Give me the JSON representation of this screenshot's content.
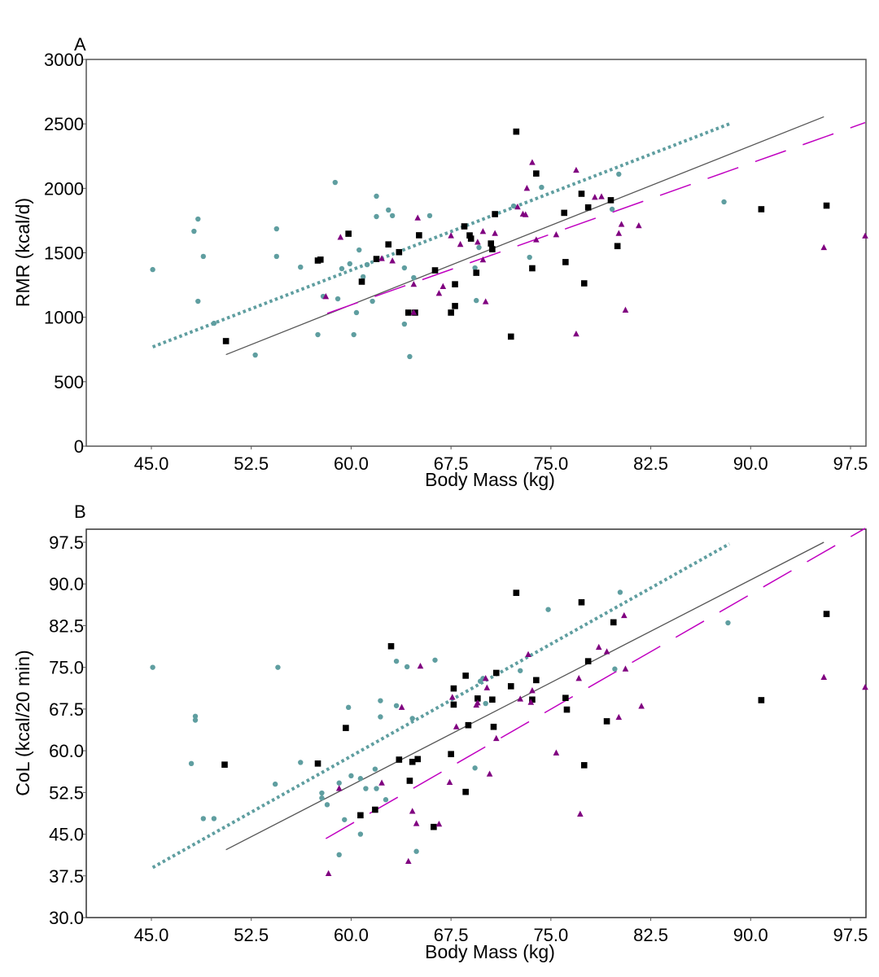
{
  "colors": {
    "female": "#5f9ea0",
    "male": "#000000",
    "combined_points": "#800080",
    "dashed_line": "#c000c0",
    "axis": "#555555"
  },
  "chart_data": [
    {
      "type": "scatter",
      "panel_label": "A",
      "xlabel": "Body Mass (kg)",
      "ylabel": "RMR (kcal/d)",
      "xlim": [
        38.8,
        99.6
      ],
      "ylim": [
        0,
        3000
      ],
      "x_ticks": [
        "45.0",
        "52.5",
        "60.0",
        "67.5",
        "75.0",
        "82.5",
        "90.0",
        "97.5"
      ],
      "x_tick_values": [
        45,
        52.5,
        60,
        67.5,
        75,
        82.5,
        90,
        97.5
      ],
      "y_ticks": [
        "0",
        "500",
        "1000",
        "1500",
        "2000",
        "2500",
        "3000"
      ],
      "y_tick_values": [
        0,
        500,
        1000,
        1500,
        2000,
        2500,
        3000
      ],
      "grid": false,
      "series": [
        {
          "name": "circles",
          "marker": "circle",
          "color": "#5f9ea0",
          "points": [
            [
              45.1,
              1370
            ],
            [
              48.2,
              1667
            ],
            [
              48.5,
              1762
            ],
            [
              48.5,
              1124
            ],
            [
              48.9,
              1472
            ],
            [
              49.7,
              953
            ],
            [
              52.8,
              707
            ],
            [
              54.4,
              1686
            ],
            [
              54.4,
              1472
            ],
            [
              56.2,
              1389
            ],
            [
              57.5,
              865
            ],
            [
              57.9,
              1162
            ],
            [
              58.8,
              2046
            ],
            [
              59.0,
              1143
            ],
            [
              59.3,
              1377
            ],
            [
              59.9,
              1415
            ],
            [
              60.2,
              865
            ],
            [
              60.6,
              1522
            ],
            [
              60.4,
              1036
            ],
            [
              60.9,
              1314
            ],
            [
              61.2,
              1408
            ],
            [
              61.6,
              1124
            ],
            [
              61.9,
              1939
            ],
            [
              61.9,
              1781
            ],
            [
              62.8,
              1832
            ],
            [
              63.1,
              1788
            ],
            [
              64.0,
              1383
            ],
            [
              64.0,
              947
            ],
            [
              64.4,
              695
            ],
            [
              64.7,
              1307
            ],
            [
              65.9,
              1788
            ],
            [
              69.3,
              1383
            ],
            [
              69.6,
              1541
            ],
            [
              69.4,
              1130
            ],
            [
              72.2,
              1863
            ],
            [
              74.3,
              2008
            ],
            [
              73.4,
              1465
            ],
            [
              79.6,
              1838
            ],
            [
              80.1,
              2110
            ],
            [
              88.0,
              1895
            ]
          ]
        },
        {
          "name": "squares",
          "marker": "square",
          "color": "#000000",
          "points": [
            [
              50.6,
              815
            ],
            [
              57.5,
              1440
            ],
            [
              57.7,
              1447
            ],
            [
              59.8,
              1648
            ],
            [
              60.8,
              1276
            ],
            [
              62.8,
              1565
            ],
            [
              61.9,
              1452
            ],
            [
              63.6,
              1505
            ],
            [
              64.3,
              1036
            ],
            [
              64.8,
              1036
            ],
            [
              65.1,
              1636
            ],
            [
              66.3,
              1364
            ],
            [
              67.5,
              1036
            ],
            [
              67.8,
              1256
            ],
            [
              67.8,
              1087
            ],
            [
              68.5,
              1705
            ],
            [
              68.9,
              1635
            ],
            [
              69.0,
              1610
            ],
            [
              69.4,
              1345
            ],
            [
              70.5,
              1572
            ],
            [
              70.6,
              1528
            ],
            [
              70.8,
              1800
            ],
            [
              72.0,
              850
            ],
            [
              72.4,
              2440
            ],
            [
              73.6,
              1380
            ],
            [
              73.9,
              2115
            ],
            [
              76.0,
              1810
            ],
            [
              76.1,
              1428
            ],
            [
              77.3,
              1958
            ],
            [
              77.5,
              1263
            ],
            [
              77.8,
              1852
            ],
            [
              79.5,
              1908
            ],
            [
              80.0,
              1552
            ],
            [
              90.8,
              1838
            ],
            [
              95.7,
              1866
            ]
          ]
        },
        {
          "name": "triangles",
          "marker": "triangle",
          "color": "#800080",
          "points": [
            [
              58.1,
              1160
            ],
            [
              59.2,
              1620
            ],
            [
              62.3,
              1455
            ],
            [
              63.1,
              1437
            ],
            [
              64.7,
              1037
            ],
            [
              64.7,
              1255
            ],
            [
              65.0,
              1770
            ],
            [
              66.6,
              1185
            ],
            [
              66.9,
              1238
            ],
            [
              67.5,
              1632
            ],
            [
              68.2,
              1565
            ],
            [
              69.5,
              1582
            ],
            [
              69.9,
              1665
            ],
            [
              69.9,
              1445
            ],
            [
              70.8,
              1650
            ],
            [
              70.1,
              1120
            ],
            [
              72.5,
              1855
            ],
            [
              72.9,
              1800
            ],
            [
              73.1,
              1795
            ],
            [
              73.2,
              2000
            ],
            [
              73.6,
              2200
            ],
            [
              73.9,
              1600
            ],
            [
              75.4,
              1640
            ],
            [
              76.9,
              2140
            ],
            [
              76.9,
              870
            ],
            [
              78.3,
              1930
            ],
            [
              78.8,
              1935
            ],
            [
              80.1,
              1650
            ],
            [
              80.3,
              1720
            ],
            [
              80.6,
              1055
            ],
            [
              81.6,
              1710
            ],
            [
              95.5,
              1540
            ],
            [
              98.6,
              1630
            ]
          ]
        }
      ],
      "fit_lines": [
        {
          "name": "dotted",
          "style": "dotted",
          "color": "#5f9ea0",
          "x": [
            45.1,
            88.4
          ],
          "y": [
            770,
            2500
          ]
        },
        {
          "name": "solid",
          "style": "solid",
          "color": "#555555",
          "x": [
            50.6,
            95.5
          ],
          "y": [
            710,
            2555
          ]
        },
        {
          "name": "dashed",
          "style": "dashed",
          "color": "#c000c0",
          "x": [
            58.2,
            98.6
          ],
          "y": [
            1030,
            2510
          ]
        }
      ]
    },
    {
      "type": "scatter",
      "panel_label": "B",
      "xlabel": "Body Mass (kg)",
      "ylabel": "CoL (kcal/20 min)",
      "xlim": [
        38.8,
        99.6
      ],
      "ylim": [
        30,
        99.8
      ],
      "x_ticks": [
        "45.0",
        "52.5",
        "60.0",
        "67.5",
        "75.0",
        "82.5",
        "90.0",
        "97.5"
      ],
      "x_tick_values": [
        45,
        52.5,
        60,
        67.5,
        75,
        82.5,
        90,
        97.5
      ],
      "y_ticks": [
        "30.0",
        "37.5",
        "45.0",
        "52.5",
        "60.0",
        "67.5",
        "75.0",
        "82.5",
        "90.0",
        "97.5"
      ],
      "y_tick_values": [
        30,
        37.5,
        45,
        52.5,
        60,
        67.5,
        75,
        82.5,
        90,
        97.5
      ],
      "grid": false,
      "series": [
        {
          "name": "circles",
          "marker": "circle",
          "color": "#5f9ea0",
          "points": [
            [
              45.1,
              75.0
            ],
            [
              48.0,
              57.7
            ],
            [
              48.3,
              66.2
            ],
            [
              48.3,
              65.5
            ],
            [
              48.9,
              47.8
            ],
            [
              49.7,
              47.8
            ],
            [
              54.5,
              75.0
            ],
            [
              54.3,
              54.0
            ],
            [
              56.2,
              57.9
            ],
            [
              57.8,
              52.4
            ],
            [
              57.8,
              51.5
            ],
            [
              58.2,
              50.3
            ],
            [
              59.1,
              54.2
            ],
            [
              59.1,
              41.3
            ],
            [
              59.5,
              47.6
            ],
            [
              59.8,
              67.8
            ],
            [
              60.0,
              55.5
            ],
            [
              60.7,
              45.0
            ],
            [
              60.7,
              55.0
            ],
            [
              61.1,
              53.2
            ],
            [
              61.8,
              56.7
            ],
            [
              61.9,
              53.2
            ],
            [
              62.2,
              69.0
            ],
            [
              62.2,
              66.1
            ],
            [
              62.6,
              51.2
            ],
            [
              63.4,
              68.1
            ],
            [
              63.4,
              76.1
            ],
            [
              64.2,
              75.1
            ],
            [
              64.6,
              65.8
            ],
            [
              64.9,
              41.9
            ],
            [
              66.3,
              76.3
            ],
            [
              69.3,
              56.9
            ],
            [
              69.7,
              72.5
            ],
            [
              69.9,
              73.0
            ],
            [
              70.1,
              68.5
            ],
            [
              72.7,
              74.4
            ],
            [
              73.9,
              72.8
            ],
            [
              74.8,
              85.4
            ],
            [
              79.8,
              74.7
            ],
            [
              80.2,
              88.5
            ],
            [
              88.3,
              83.0
            ]
          ]
        },
        {
          "name": "squares",
          "marker": "square",
          "color": "#000000",
          "points": [
            [
              50.5,
              57.5
            ],
            [
              57.5,
              57.7
            ],
            [
              59.6,
              64.1
            ],
            [
              60.7,
              48.4
            ],
            [
              61.8,
              49.4
            ],
            [
              63.0,
              78.8
            ],
            [
              63.6,
              58.4
            ],
            [
              64.4,
              54.6
            ],
            [
              64.6,
              58.0
            ],
            [
              65.0,
              58.5
            ],
            [
              66.2,
              46.3
            ],
            [
              67.5,
              59.4
            ],
            [
              67.7,
              71.2
            ],
            [
              67.7,
              68.3
            ],
            [
              68.6,
              52.6
            ],
            [
              68.6,
              73.5
            ],
            [
              68.8,
              64.6
            ],
            [
              69.5,
              69.4
            ],
            [
              70.6,
              69.2
            ],
            [
              70.7,
              64.3
            ],
            [
              70.9,
              74.0
            ],
            [
              72.0,
              71.6
            ],
            [
              72.4,
              88.4
            ],
            [
              73.6,
              69.2
            ],
            [
              73.9,
              72.7
            ],
            [
              76.1,
              69.5
            ],
            [
              76.2,
              67.4
            ],
            [
              77.3,
              86.7
            ],
            [
              77.5,
              57.4
            ],
            [
              77.8,
              76.1
            ],
            [
              79.2,
              65.3
            ],
            [
              79.7,
              83.1
            ],
            [
              90.8,
              69.1
            ],
            [
              95.7,
              84.6
            ]
          ]
        },
        {
          "name": "triangles",
          "marker": "triangle",
          "color": "#800080",
          "points": [
            [
              58.3,
              37.9
            ],
            [
              59.1,
              53.2
            ],
            [
              62.3,
              54.2
            ],
            [
              63.8,
              67.8
            ],
            [
              64.3,
              40.1
            ],
            [
              64.6,
              49.1
            ],
            [
              64.9,
              46.9
            ],
            [
              65.2,
              75.2
            ],
            [
              66.6,
              46.8
            ],
            [
              67.4,
              54.3
            ],
            [
              67.6,
              69.6
            ],
            [
              67.9,
              64.3
            ],
            [
              69.4,
              68.2
            ],
            [
              69.5,
              68.6
            ],
            [
              70.1,
              73.0
            ],
            [
              70.2,
              71.3
            ],
            [
              70.4,
              55.8
            ],
            [
              70.9,
              62.2
            ],
            [
              72.7,
              69.3
            ],
            [
              73.3,
              77.3
            ],
            [
              73.5,
              68.7
            ],
            [
              73.6,
              70.8
            ],
            [
              75.4,
              59.6
            ],
            [
              77.1,
              73.0
            ],
            [
              77.2,
              48.6
            ],
            [
              78.6,
              78.6
            ],
            [
              79.2,
              77.8
            ],
            [
              80.1,
              66.0
            ],
            [
              80.5,
              84.3
            ],
            [
              80.6,
              74.7
            ],
            [
              81.8,
              68.0
            ],
            [
              95.5,
              73.2
            ],
            [
              98.6,
              71.4
            ]
          ]
        }
      ],
      "fit_lines": [
        {
          "name": "dotted",
          "style": "dotted",
          "color": "#5f9ea0",
          "x": [
            45.1,
            88.4
          ],
          "y": [
            39.0,
            97.2
          ]
        },
        {
          "name": "solid",
          "style": "solid",
          "color": "#555555",
          "x": [
            50.6,
            95.5
          ],
          "y": [
            42.2,
            97.5
          ]
        },
        {
          "name": "dashed",
          "style": "dashed",
          "color": "#c000c0",
          "x": [
            58.1,
            98.6
          ],
          "y": [
            44.2,
            100.0
          ]
        }
      ]
    }
  ]
}
